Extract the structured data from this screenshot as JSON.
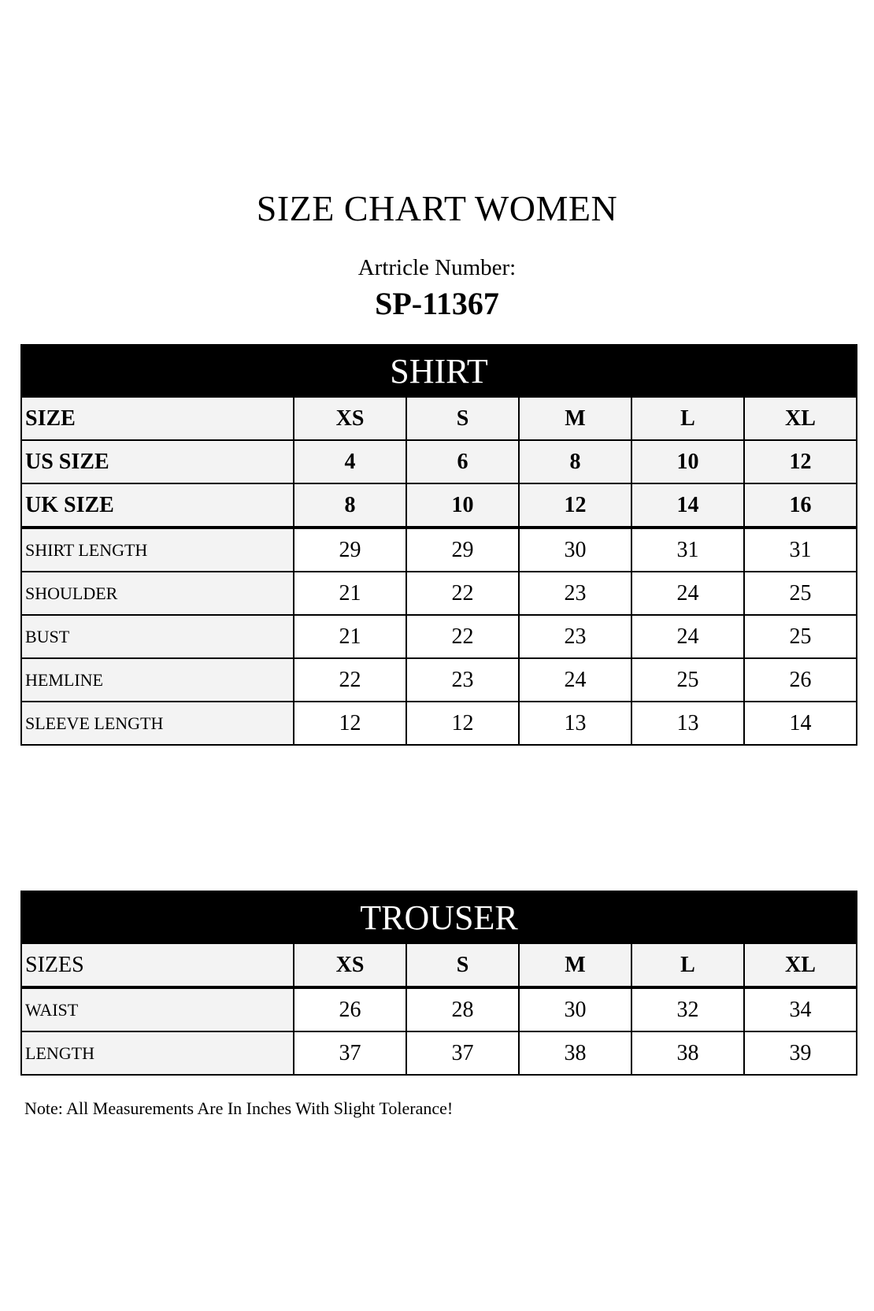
{
  "title": "SIZE CHART WOMEN",
  "article_label": "Artricle Number:",
  "article_number": "SP-11367",
  "shirt": {
    "heading": "SHIRT",
    "header_rows": [
      {
        "label": "SIZE",
        "values": [
          "XS",
          "S",
          "M",
          "L",
          "XL"
        ]
      },
      {
        "label": "US SIZE",
        "values": [
          "4",
          "6",
          "8",
          "10",
          "12"
        ]
      },
      {
        "label": "UK SIZE",
        "values": [
          "8",
          "10",
          "12",
          "14",
          "16"
        ]
      }
    ],
    "rows": [
      {
        "label": "SHIRT LENGTH",
        "values": [
          "29",
          "29",
          "30",
          "31",
          "31"
        ]
      },
      {
        "label": "SHOULDER",
        "values": [
          "21",
          "22",
          "23",
          "24",
          "25"
        ]
      },
      {
        "label": "BUST",
        "values": [
          "21",
          "22",
          "23",
          "24",
          "25"
        ]
      },
      {
        "label": "HEMLINE",
        "values": [
          "22",
          "23",
          "24",
          "25",
          "26"
        ]
      },
      {
        "label": "SLEEVE LENGTH",
        "values": [
          "12",
          "12",
          "13",
          "13",
          "14"
        ]
      }
    ]
  },
  "trouser": {
    "heading": "TROUSER",
    "header_row": {
      "label": "SIZES",
      "values": [
        "XS",
        "S",
        "M",
        "L",
        "XL"
      ]
    },
    "rows": [
      {
        "label": "WAIST",
        "values": [
          "26",
          "28",
          "30",
          "32",
          "34"
        ]
      },
      {
        "label": "LENGTH",
        "values": [
          "37",
          "37",
          "38",
          "38",
          "39"
        ]
      }
    ]
  },
  "note": "Note: All Measurements Are In Inches With Slight Tolerance!"
}
